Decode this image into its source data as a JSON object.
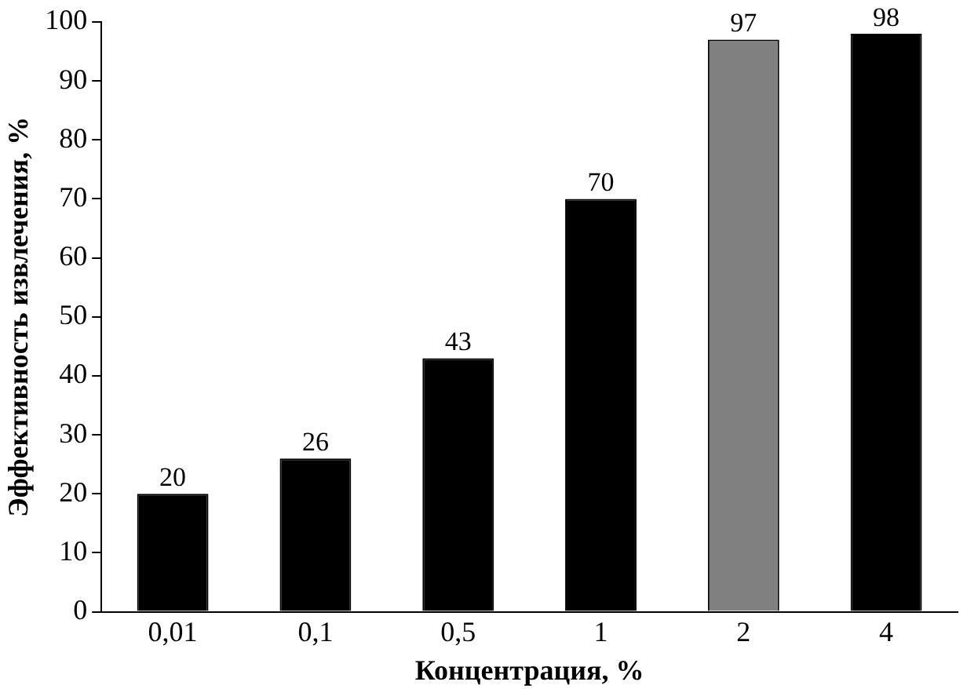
{
  "chart_data": {
    "type": "bar",
    "xlabel": "Концентрация, %",
    "ylabel": "Эффективность извлечения, %",
    "categories": [
      "0,01",
      "0,1",
      "0,5",
      "1",
      "2",
      "4"
    ],
    "values": [
      20,
      26,
      43,
      70,
      97,
      98
    ],
    "colors": [
      "#000000",
      "#000000",
      "#000000",
      "#000000",
      "#808080",
      "#000000"
    ],
    "ylim": [
      0,
      100
    ],
    "yticks": [
      0,
      10,
      20,
      30,
      40,
      50,
      60,
      70,
      80,
      90,
      100
    ],
    "grid": false,
    "legend": false,
    "data_labels": true
  }
}
